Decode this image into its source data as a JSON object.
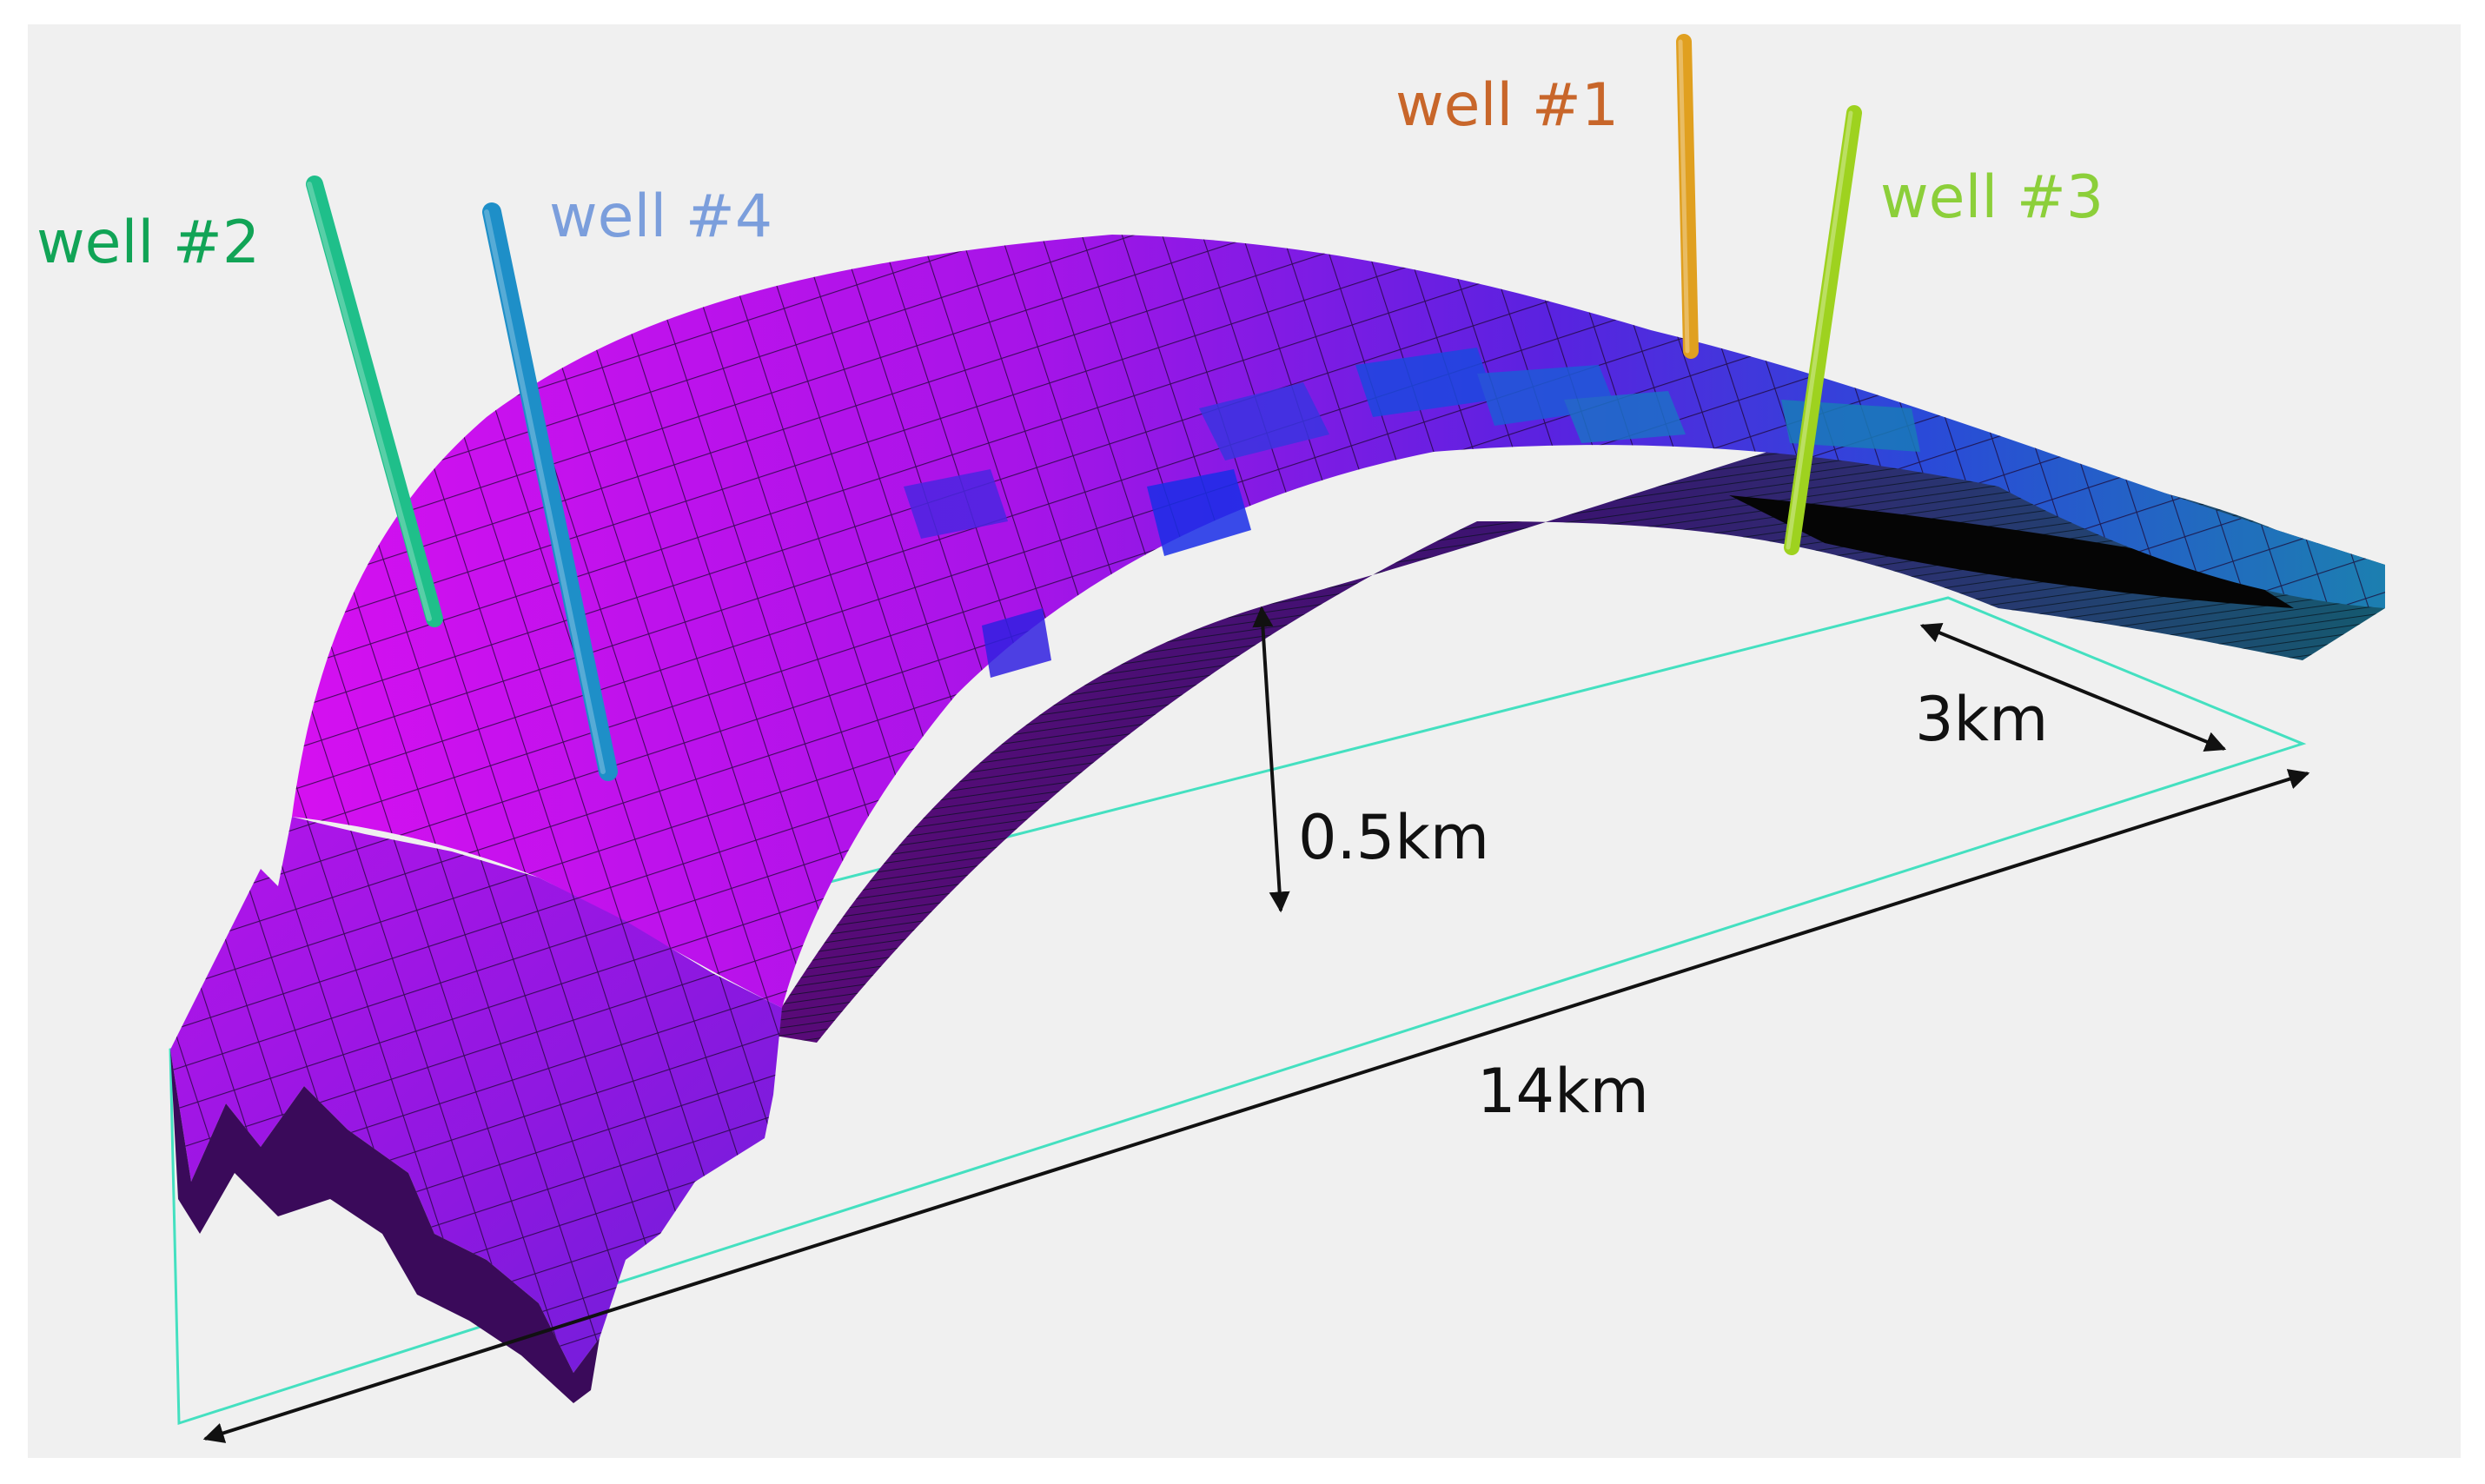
{
  "wells": [
    {
      "id": "well1",
      "label": "well #1",
      "color": "#c8662a",
      "pipe_color": "#e0a020"
    },
    {
      "id": "well2",
      "label": "well #2",
      "color": "#11a456",
      "pipe_color": "#1fbf8a"
    },
    {
      "id": "well3",
      "label": "well #3",
      "color": "#8ccf3a",
      "pipe_color": "#9ed21f"
    },
    {
      "id": "well4",
      "label": "well #4",
      "color": "#7b9edc",
      "pipe_color": "#1e8fc8"
    }
  ],
  "dimensions": {
    "length": "14km",
    "width": "3km",
    "thickness": "0.5km"
  },
  "colors": {
    "background": "#f0f0f0",
    "surface_magenta": "#cc11ee",
    "surface_blue": "#2a3ad8",
    "outline": "#44e0c0",
    "arrow": "#111111"
  }
}
